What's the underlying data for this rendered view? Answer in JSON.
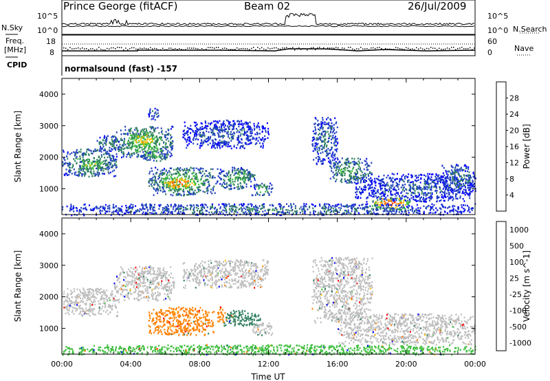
{
  "header": {
    "title": "Prince George (fitACF)",
    "beam": "Beam 02",
    "date": "26/Jul/2009"
  },
  "noise_panel": {
    "left_label": "N.Sky",
    "right_label": "N.Search",
    "left_ticks": [
      "10^5",
      "10^0"
    ],
    "right_ticks": [
      "10^5",
      "10^0"
    ]
  },
  "freq_panel": {
    "left_label": "Freq.",
    "left_unit": "[MHz]",
    "left_ticks": [
      "18",
      "8"
    ],
    "right_label": "Nave",
    "right_ticks": [
      "60",
      "0"
    ]
  },
  "cpid_panel": {
    "label": "CPID",
    "program": "normalsound (fast) -157"
  },
  "colors": {
    "power_scale": [
      "#0000ff",
      "#1f3fbf",
      "#2f7f5f",
      "#3fbf3f",
      "#ffbf00",
      "#ff7f00",
      "#ff3f00",
      "#ff0000"
    ],
    "velocity_scale": [
      "#ff0000",
      "#ff7f00",
      "#ffbf00",
      "#bebebe",
      "#bebebe",
      "#3fbf3f",
      "#2f7f5f",
      "#0000ff"
    ]
  },
  "chart_data": [
    {
      "type": "heatmap",
      "title": "",
      "xlabel": "",
      "ylabel": "Slant Range [km]",
      "xlim": [
        0,
        24
      ],
      "ylim": [
        180,
        4500
      ],
      "yticks": [
        "1000",
        "2000",
        "3000",
        "4000"
      ],
      "colorbar": {
        "label": "Power [dB]",
        "ticks": [
          "4",
          "8",
          "12",
          "16",
          "20",
          "24",
          "28"
        ],
        "range": [
          0,
          32
        ]
      },
      "features": [
        {
          "t0": 0.0,
          "t1": 3.2,
          "r0": 1400,
          "r1": 2300,
          "power": 14
        },
        {
          "t0": 1.0,
          "t1": 2.5,
          "r0": 1600,
          "r1": 1900,
          "power": 20
        },
        {
          "t0": 2.0,
          "t1": 3.3,
          "r0": 2200,
          "r1": 2700,
          "power": 12
        },
        {
          "t0": 3.0,
          "t1": 6.5,
          "r0": 2000,
          "r1": 3000,
          "power": 16
        },
        {
          "t0": 3.8,
          "t1": 5.6,
          "r0": 2300,
          "r1": 2800,
          "power": 22
        },
        {
          "t0": 4.5,
          "t1": 6.2,
          "r0": 1900,
          "r1": 2200,
          "power": 14
        },
        {
          "t0": 5.0,
          "t1": 5.6,
          "r0": 3200,
          "r1": 3600,
          "power": 10
        },
        {
          "t0": 5.0,
          "t1": 9.0,
          "r0": 800,
          "r1": 1700,
          "power": 16
        },
        {
          "t0": 5.8,
          "t1": 7.8,
          "r0": 1000,
          "r1": 1400,
          "power": 28
        },
        {
          "t0": 9.0,
          "t1": 11.2,
          "r0": 1000,
          "r1": 1700,
          "power": 14
        },
        {
          "t0": 10.0,
          "t1": 11.0,
          "r0": 1300,
          "r1": 1600,
          "power": 18
        },
        {
          "t0": 11.0,
          "t1": 12.2,
          "r0": 800,
          "r1": 1200,
          "power": 14
        },
        {
          "t0": 7.0,
          "t1": 12.0,
          "r0": 2300,
          "r1": 3200,
          "power": 8
        },
        {
          "t0": 14.5,
          "t1": 16.0,
          "r0": 1800,
          "r1": 3300,
          "power": 10
        },
        {
          "t0": 15.5,
          "t1": 18.0,
          "r0": 1200,
          "r1": 2000,
          "power": 14
        },
        {
          "t0": 17.0,
          "t1": 24.0,
          "r0": 600,
          "r1": 1500,
          "power": 8
        },
        {
          "t0": 18.0,
          "t1": 20.2,
          "r0": 350,
          "r1": 750,
          "power": 28
        },
        {
          "t0": 22.0,
          "t1": 24.0,
          "r0": 900,
          "r1": 1800,
          "power": 10
        },
        {
          "t0": 0.0,
          "t1": 24.0,
          "r0": 180,
          "r1": 550,
          "power": 10
        }
      ]
    },
    {
      "type": "heatmap",
      "title": "",
      "xlabel": "Time UT",
      "ylabel": "Slant Range [km]",
      "xlim": [
        0,
        24
      ],
      "ylim": [
        180,
        4500
      ],
      "xticks": [
        "00:00",
        "04:00",
        "08:00",
        "12:00",
        "16:00",
        "20:00",
        "00:00"
      ],
      "yticks": [
        "1000",
        "2000",
        "3000",
        "4000"
      ],
      "colorbar": {
        "label": "Velocity [m s^-1]",
        "ticks": [
          "1000",
          "500",
          "100",
          "25",
          "-25",
          "-100",
          "-500",
          "-1000"
        ]
      },
      "features": [
        {
          "t0": 0.0,
          "t1": 3.3,
          "r0": 1400,
          "r1": 2300,
          "velocity": 0
        },
        {
          "t0": 3.0,
          "t1": 6.5,
          "r0": 1900,
          "r1": 3000,
          "velocity": 0
        },
        {
          "t0": 5.0,
          "t1": 8.8,
          "r0": 800,
          "r1": 1700,
          "velocity": -300
        },
        {
          "t0": 9.0,
          "t1": 9.5,
          "r0": 1200,
          "r1": 1700,
          "velocity": -150
        },
        {
          "t0": 9.4,
          "t1": 11.5,
          "r0": 1100,
          "r1": 1600,
          "velocity": 120
        },
        {
          "t0": 11.0,
          "t1": 12.2,
          "r0": 800,
          "r1": 1200,
          "velocity": 0
        },
        {
          "t0": 7.0,
          "t1": 12.0,
          "r0": 2300,
          "r1": 3200,
          "velocity": 0
        },
        {
          "t0": 14.5,
          "t1": 18.0,
          "r0": 1200,
          "r1": 3300,
          "velocity": 0
        },
        {
          "t0": 16.0,
          "t1": 24.0,
          "r0": 500,
          "r1": 1500,
          "velocity": 0
        },
        {
          "t0": 0.0,
          "t1": 24.0,
          "r0": 180,
          "r1": 500,
          "velocity": 80
        }
      ]
    }
  ]
}
